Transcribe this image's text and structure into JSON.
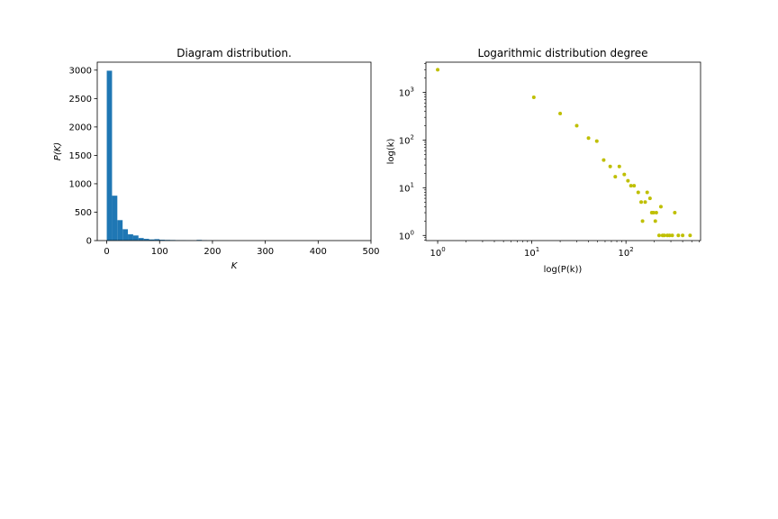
{
  "chart_data": [
    {
      "type": "bar",
      "title": "Diagram distribution.",
      "xlabel": "K",
      "ylabel": "P(K)",
      "xlim": [
        -18,
        500
      ],
      "ylim": [
        0,
        3140
      ],
      "xticks": [
        0,
        100,
        200,
        300,
        400,
        500
      ],
      "yticks": [
        0,
        500,
        1000,
        1500,
        2000,
        2500,
        3000
      ],
      "bin_width": 10,
      "bins": [
        {
          "x0": 0,
          "value": 2990
        },
        {
          "x0": 10,
          "value": 790
        },
        {
          "x0": 20,
          "value": 360
        },
        {
          "x0": 30,
          "value": 200
        },
        {
          "x0": 40,
          "value": 110
        },
        {
          "x0": 50,
          "value": 90
        },
        {
          "x0": 60,
          "value": 45
        },
        {
          "x0": 70,
          "value": 30
        },
        {
          "x0": 80,
          "value": 20
        },
        {
          "x0": 90,
          "value": 25
        },
        {
          "x0": 100,
          "value": 15
        },
        {
          "x0": 110,
          "value": 12
        },
        {
          "x0": 120,
          "value": 10
        },
        {
          "x0": 130,
          "value": 8
        },
        {
          "x0": 140,
          "value": 7
        },
        {
          "x0": 150,
          "value": 5
        },
        {
          "x0": 160,
          "value": 4
        },
        {
          "x0": 170,
          "value": 12
        },
        {
          "x0": 180,
          "value": 6
        },
        {
          "x0": 190,
          "value": 3
        },
        {
          "x0": 200,
          "value": 2
        },
        {
          "x0": 210,
          "value": 1
        },
        {
          "x0": 220,
          "value": 1
        }
      ],
      "color": "#1f77b4",
      "grid": false
    },
    {
      "type": "scatter",
      "title": "Logarithmic distribution degree",
      "xlabel": "log(P(k))",
      "ylabel": "log(k)",
      "xscale": "log",
      "yscale": "log",
      "xlim": [
        0.75,
        620
      ],
      "ylim": [
        0.78,
        4300
      ],
      "xticks": [
        {
          "value": 1,
          "base": "10",
          "exp": "0"
        },
        {
          "value": 10,
          "base": "10",
          "exp": "1"
        },
        {
          "value": 100,
          "base": "10",
          "exp": "2"
        }
      ],
      "yticks": [
        {
          "value": 1,
          "base": "10",
          "exp": "0"
        },
        {
          "value": 10,
          "base": "10",
          "exp": "1"
        },
        {
          "value": 100,
          "base": "10",
          "exp": "2"
        },
        {
          "value": 1000,
          "base": "10",
          "exp": "3"
        }
      ],
      "color": "#bfbf00",
      "grid": false,
      "points": [
        [
          1,
          2990
        ],
        [
          10.5,
          790
        ],
        [
          20,
          360
        ],
        [
          30,
          200
        ],
        [
          40,
          110
        ],
        [
          49,
          95
        ],
        [
          58,
          38
        ],
        [
          68,
          28
        ],
        [
          77,
          17
        ],
        [
          85,
          28
        ],
        [
          96,
          19
        ],
        [
          105,
          14
        ],
        [
          113,
          11
        ],
        [
          122,
          11
        ],
        [
          135,
          8
        ],
        [
          145,
          5
        ],
        [
          150,
          2
        ],
        [
          160,
          5
        ],
        [
          168,
          8
        ],
        [
          180,
          6
        ],
        [
          188,
          3
        ],
        [
          196,
          3
        ],
        [
          205,
          2
        ],
        [
          210,
          3
        ],
        [
          225,
          1
        ],
        [
          235,
          4
        ],
        [
          245,
          1
        ],
        [
          255,
          1
        ],
        [
          275,
          1
        ],
        [
          290,
          1
        ],
        [
          310,
          1
        ],
        [
          330,
          3
        ],
        [
          360,
          1
        ],
        [
          400,
          1
        ],
        [
          480,
          1
        ]
      ]
    }
  ]
}
